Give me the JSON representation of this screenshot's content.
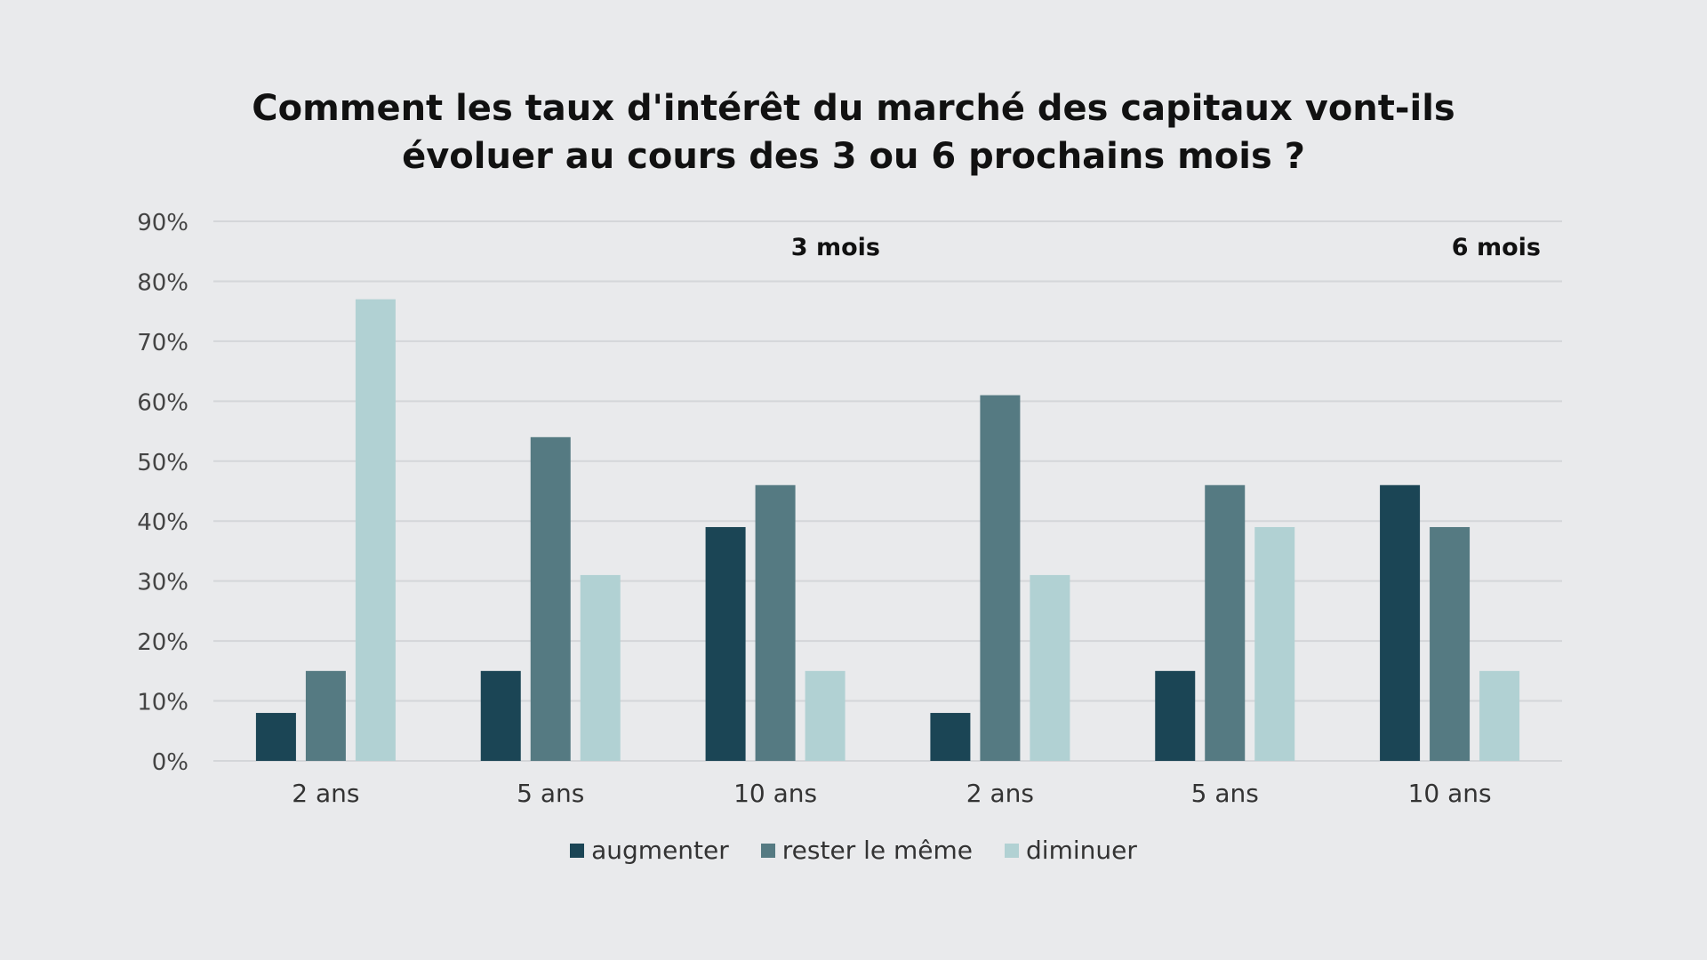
{
  "chart_data": {
    "type": "bar",
    "title_lines": [
      "Comment les taux d'intérêt du marché des capitaux vont-ils",
      "évoluer au cours des 3 ou 6 prochains mois ?"
    ],
    "categories": [
      "2 ans",
      "5 ans",
      "10 ans",
      "2 ans",
      "5 ans",
      "10 ans"
    ],
    "groups": [
      {
        "label": "3 mois",
        "category_indices": [
          0,
          1,
          2
        ]
      },
      {
        "label": "6 mois",
        "category_indices": [
          3,
          4,
          5
        ]
      }
    ],
    "series": [
      {
        "name": "augmenter",
        "color": "#1b4555",
        "values": [
          8,
          15,
          39,
          8,
          15,
          46
        ]
      },
      {
        "name": "rester le même",
        "color": "#557a82",
        "values": [
          15,
          54,
          46,
          61,
          46,
          39
        ]
      },
      {
        "name": "diminuer",
        "color": "#b1d1d3",
        "values": [
          77,
          31,
          15,
          31,
          39,
          15
        ]
      }
    ],
    "ylim": [
      0,
      90
    ],
    "yticks": [
      0,
      10,
      20,
      30,
      40,
      50,
      60,
      70,
      80,
      90
    ],
    "ytick_labels": [
      "0%",
      "10%",
      "20%",
      "30%",
      "40%",
      "50%",
      "60%",
      "70%",
      "80%",
      "90%"
    ],
    "grid": true,
    "legend_position": "bottom-center"
  }
}
